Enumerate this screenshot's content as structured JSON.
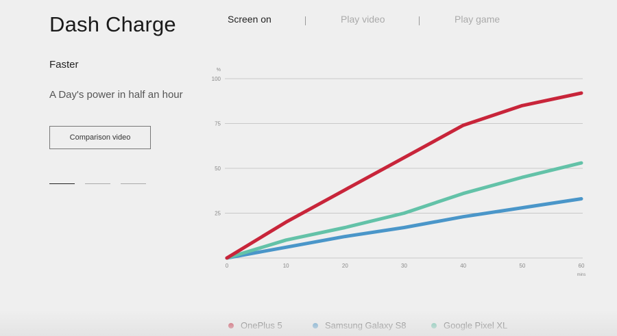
{
  "header": {
    "title": "Dash Charge",
    "subtitle": "Faster",
    "tagline": "A Day's power in half an hour",
    "comparison_button": "Comparison video"
  },
  "pager": {
    "count": 3,
    "active_index": 0
  },
  "tabs": [
    {
      "label": "Screen on",
      "active": true
    },
    {
      "label": "Play video",
      "active": false
    },
    {
      "label": "Play game",
      "active": false
    }
  ],
  "colors": {
    "oneplus": "#c8253a",
    "samsung": "#4a96c9",
    "pixel": "#63c2a8",
    "grid": "#c8c8c8",
    "background": "#efefef"
  },
  "chart_data": {
    "type": "line",
    "title": "",
    "xlabel": "mins",
    "ylabel": "%",
    "xlim": [
      0,
      60
    ],
    "ylim": [
      0,
      100
    ],
    "xticks": [
      0,
      10,
      20,
      30,
      40,
      50,
      60
    ],
    "yticks": [
      25,
      50,
      75,
      100
    ],
    "grid": true,
    "legend_position": "bottom",
    "x": [
      0,
      10,
      20,
      30,
      40,
      50,
      60
    ],
    "series": [
      {
        "name": "OnePlus 5",
        "color": "#c8253a",
        "values": [
          0,
          20,
          38,
          56,
          74,
          85,
          92
        ]
      },
      {
        "name": "Samsung Galaxy S8",
        "color": "#4a96c9",
        "values": [
          0,
          6,
          12,
          17,
          23,
          28,
          33
        ]
      },
      {
        "name": "Google Pixel XL",
        "color": "#63c2a8",
        "values": [
          0,
          10,
          17,
          25,
          36,
          45,
          53
        ]
      }
    ]
  }
}
